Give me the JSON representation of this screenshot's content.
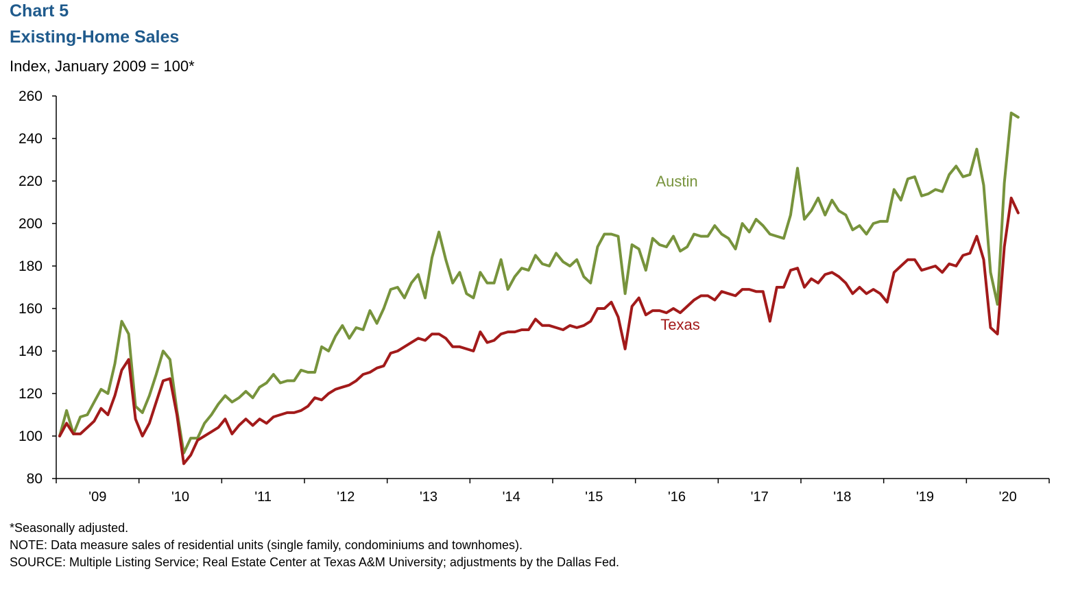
{
  "header": {
    "chart_number": "Chart 5",
    "title": "Existing-Home Sales",
    "subtitle": "Index, January 2009 = 100*"
  },
  "notes": {
    "footnote": "*Seasonally adjusted.",
    "note": "NOTE: Data measure sales of residential units (single family, condominiums and townhomes).",
    "source": "SOURCE: Multiple Listing Service; Real Estate Center at Texas A&M University; adjustments by the Dallas Fed."
  },
  "colors": {
    "austin": "#77933c",
    "texas": "#a21a1a",
    "axis": "#000000"
  },
  "chart_data": {
    "type": "line",
    "title": "Existing-Home Sales",
    "ylabel": "Index, January 2009 = 100*",
    "ylim": [
      80,
      260
    ],
    "yticks": [
      80,
      100,
      120,
      140,
      160,
      180,
      200,
      220,
      240,
      260
    ],
    "xlim": [
      "2009-01",
      "2020-05"
    ],
    "xtick_labels": [
      "'09",
      "'10",
      "'11",
      "'12",
      "'13",
      "'14",
      "'15",
      "'16",
      "'17",
      "'18",
      "'19",
      "'20"
    ],
    "grid": false,
    "x_start": "2009-01",
    "frequency": "monthly",
    "series": [
      {
        "name": "Austin",
        "color": "#77933c",
        "values": [
          100,
          112,
          101,
          109,
          110,
          116,
          122,
          120,
          134,
          154,
          148,
          114,
          111,
          119,
          129,
          140,
          136,
          112,
          92,
          99,
          99,
          106,
          110,
          115,
          119,
          116,
          118,
          121,
          118,
          123,
          125,
          129,
          125,
          126,
          126,
          131,
          130,
          130,
          142,
          140,
          147,
          152,
          146,
          151,
          150,
          159,
          153,
          160,
          169,
          170,
          165,
          172,
          176,
          165,
          184,
          196,
          183,
          172,
          177,
          167,
          165,
          177,
          172,
          172,
          183,
          169,
          175,
          179,
          178,
          185,
          181,
          180,
          186,
          182,
          180,
          183,
          175,
          172,
          189,
          195,
          195,
          194,
          167,
          190,
          188,
          178,
          193,
          190,
          189,
          194,
          187,
          189,
          195,
          194,
          194,
          199,
          195,
          193,
          188,
          200,
          196,
          202,
          199,
          195,
          194,
          193,
          204,
          226,
          202,
          206,
          212,
          204,
          211,
          206,
          204,
          197,
          199,
          195,
          200,
          201,
          201,
          216,
          211,
          221,
          222,
          213,
          214,
          216,
          215,
          223,
          227,
          222,
          223,
          235,
          218,
          177,
          162,
          219,
          252,
          250
        ]
      },
      {
        "name": "Texas",
        "color": "#a21a1a",
        "values": [
          100,
          106,
          101,
          101,
          104,
          107,
          113,
          110,
          119,
          131,
          136,
          108,
          100,
          106,
          116,
          126,
          127,
          110,
          87,
          91,
          98,
          100,
          102,
          104,
          108,
          101,
          105,
          108,
          105,
          108,
          106,
          109,
          110,
          111,
          111,
          112,
          114,
          118,
          117,
          120,
          122,
          123,
          124,
          126,
          129,
          130,
          132,
          133,
          139,
          140,
          142,
          144,
          146,
          145,
          148,
          148,
          146,
          142,
          142,
          141,
          140,
          149,
          144,
          145,
          148,
          149,
          149,
          150,
          150,
          155,
          152,
          152,
          151,
          150,
          152,
          151,
          152,
          154,
          160,
          160,
          163,
          156,
          141,
          161,
          165,
          157,
          159,
          159,
          158,
          160,
          158,
          161,
          164,
          166,
          166,
          164,
          168,
          167,
          166,
          169,
          169,
          168,
          168,
          154,
          170,
          170,
          178,
          179,
          170,
          174,
          172,
          176,
          177,
          175,
          172,
          167,
          170,
          167,
          169,
          167,
          163,
          177,
          180,
          183,
          183,
          178,
          179,
          180,
          177,
          181,
          180,
          185,
          186,
          194,
          183,
          151,
          148,
          189,
          212,
          205
        ]
      }
    ],
    "annotations": [
      {
        "text": "Austin",
        "series": "Austin"
      },
      {
        "text": "Texas",
        "series": "Texas"
      }
    ]
  }
}
